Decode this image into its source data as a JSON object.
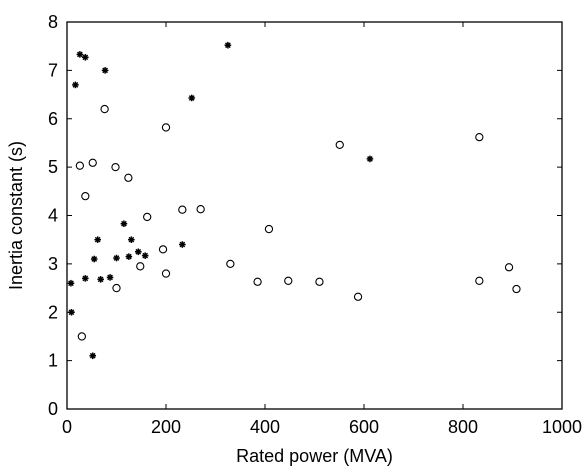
{
  "chart_data": {
    "type": "scatter",
    "title": "",
    "xlabel": "Rated power (MVA)",
    "ylabel": "Inertia constant (s)",
    "xlim": [
      0,
      1000
    ],
    "ylim": [
      0,
      8
    ],
    "xticks": [
      "0",
      "200",
      "400",
      "600",
      "800",
      "1000"
    ],
    "yticks": [
      "0",
      "1",
      "2",
      "3",
      "4",
      "5",
      "6",
      "7",
      "8"
    ],
    "grid": false,
    "legend": "none",
    "series": [
      {
        "marker": "star",
        "points": [
          {
            "x": 8,
            "y": 2.6
          },
          {
            "x": 9,
            "y": 2.0
          },
          {
            "x": 17,
            "y": 6.7
          },
          {
            "x": 26,
            "y": 7.33
          },
          {
            "x": 37,
            "y": 7.27
          },
          {
            "x": 37,
            "y": 2.7
          },
          {
            "x": 52,
            "y": 1.1
          },
          {
            "x": 55,
            "y": 3.1
          },
          {
            "x": 62,
            "y": 3.5
          },
          {
            "x": 68,
            "y": 2.68
          },
          {
            "x": 77,
            "y": 7.0
          },
          {
            "x": 87,
            "y": 2.72
          },
          {
            "x": 100,
            "y": 3.12
          },
          {
            "x": 115,
            "y": 3.83
          },
          {
            "x": 125,
            "y": 3.15
          },
          {
            "x": 130,
            "y": 3.5
          },
          {
            "x": 144,
            "y": 3.25
          },
          {
            "x": 158,
            "y": 3.17
          },
          {
            "x": 233,
            "y": 3.4
          },
          {
            "x": 252,
            "y": 6.43
          },
          {
            "x": 325,
            "y": 7.52
          },
          {
            "x": 612,
            "y": 5.17
          }
        ]
      },
      {
        "marker": "circle",
        "points": [
          {
            "x": 26,
            "y": 5.03
          },
          {
            "x": 30,
            "y": 1.5
          },
          {
            "x": 37,
            "y": 4.4
          },
          {
            "x": 52,
            "y": 5.09
          },
          {
            "x": 76,
            "y": 6.2
          },
          {
            "x": 98,
            "y": 5.0
          },
          {
            "x": 100,
            "y": 2.5
          },
          {
            "x": 124,
            "y": 4.78
          },
          {
            "x": 148,
            "y": 2.95
          },
          {
            "x": 162,
            "y": 3.97
          },
          {
            "x": 194,
            "y": 3.3
          },
          {
            "x": 200,
            "y": 5.82
          },
          {
            "x": 200,
            "y": 2.8
          },
          {
            "x": 233,
            "y": 4.12
          },
          {
            "x": 270,
            "y": 4.13
          },
          {
            "x": 330,
            "y": 3.0
          },
          {
            "x": 385,
            "y": 2.63
          },
          {
            "x": 408,
            "y": 3.72
          },
          {
            "x": 447,
            "y": 2.65
          },
          {
            "x": 510,
            "y": 2.63
          },
          {
            "x": 551,
            "y": 5.46
          },
          {
            "x": 588,
            "y": 2.32
          },
          {
            "x": 833,
            "y": 5.62
          },
          {
            "x": 833,
            "y": 2.65
          },
          {
            "x": 893,
            "y": 2.93
          },
          {
            "x": 908,
            "y": 2.48
          }
        ]
      }
    ]
  }
}
